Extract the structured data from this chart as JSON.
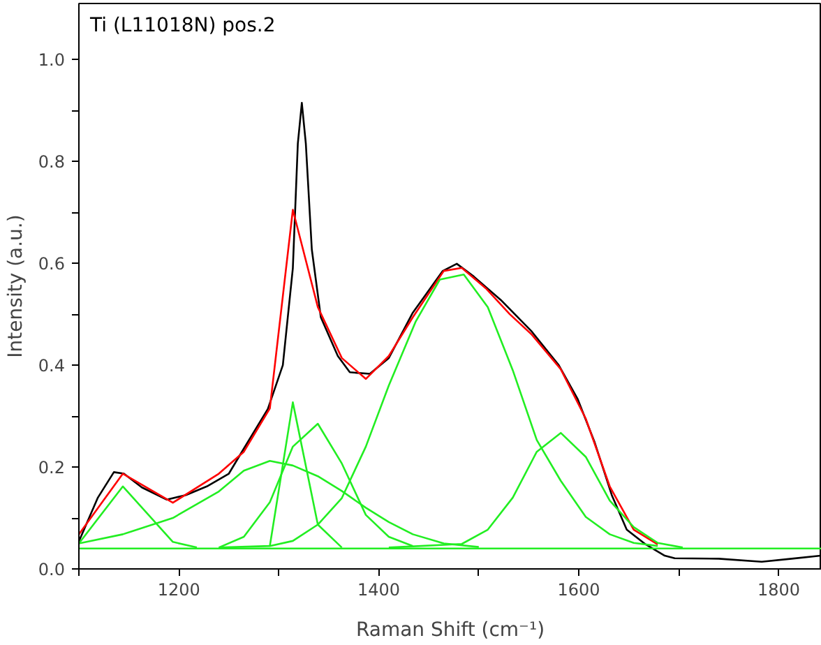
{
  "chart_data": {
    "type": "line",
    "title": "Ti (L11018N) pos.2",
    "xlabel": "Raman Shift (cm⁻¹)",
    "ylabel": "Intensity (a.u.)",
    "xlim": [
      1100,
      1843
    ],
    "ylim": [
      0,
      1.11
    ],
    "xticks": [
      {
        "value": 1100,
        "label": null
      },
      1200,
      {
        "value": 1300,
        "label": null
      },
      1400,
      {
        "value": 1500,
        "label": null
      },
      1600,
      {
        "value": 1700,
        "label": null
      },
      1800
    ],
    "yticks": [
      {
        "value": 0,
        "label": "0.0"
      },
      {
        "value": 0.1,
        "label": null
      },
      0.2,
      {
        "value": 0.3,
        "label": null
      },
      0.4,
      {
        "value": 0.5,
        "label": null
      },
      0.6,
      {
        "value": 0.7,
        "label": null
      },
      0.8,
      {
        "value": 0.9,
        "label": null
      },
      {
        "value": 1.0,
        "label": "1.0"
      }
    ],
    "grid": false,
    "line_style": "solid",
    "marker": "none",
    "series": [
      {
        "color": "#000000",
        "x": [
          1100,
          1119,
          1135,
          1145,
          1163,
          1188,
          1207,
          1228,
          1250,
          1264,
          1289,
          1304,
          1314,
          1319,
          1323,
          1327,
          1333,
          1342,
          1359,
          1371,
          1391,
          1410,
          1434,
          1464,
          1478,
          1495,
          1522,
          1553,
          1580,
          1599,
          1616,
          1633,
          1648,
          1667,
          1686,
          1696,
          1740,
          1783,
          1813,
          1842
        ],
        "values": [
          0.054,
          0.14,
          0.19,
          0.187,
          0.16,
          0.136,
          0.145,
          0.162,
          0.187,
          0.233,
          0.314,
          0.4,
          0.59,
          0.835,
          0.915,
          0.835,
          0.627,
          0.494,
          0.418,
          0.386,
          0.383,
          0.414,
          0.503,
          0.585,
          0.599,
          0.574,
          0.528,
          0.466,
          0.4,
          0.333,
          0.248,
          0.145,
          0.077,
          0.048,
          0.026,
          0.021,
          0.02,
          0.014,
          0.02,
          0.026
        ]
      },
      {
        "color": "#ff0000",
        "x": [
          1100,
          1144,
          1194,
          1240,
          1265,
          1291,
          1314,
          1339,
          1363,
          1387,
          1410,
          1434,
          1465,
          1483,
          1507,
          1531,
          1553,
          1582,
          1607,
          1631,
          1655,
          1679
        ],
        "values": [
          0.068,
          0.187,
          0.13,
          0.187,
          0.23,
          0.315,
          0.705,
          0.514,
          0.414,
          0.373,
          0.418,
          0.494,
          0.585,
          0.591,
          0.551,
          0.5,
          0.46,
          0.392,
          0.295,
          0.162,
          0.077,
          0.048
        ]
      },
      {
        "color": "#22ee22",
        "x": [
          1100,
          1144,
          1194,
          1218
        ],
        "values": [
          0.05,
          0.162,
          0.053,
          0.042
        ]
      },
      {
        "color": "#22ee22",
        "x": [
          1100,
          1144,
          1194,
          1240,
          1265,
          1291,
          1314,
          1339,
          1363,
          1387,
          1410,
          1434,
          1465,
          1500
        ],
        "values": [
          0.05,
          0.068,
          0.1,
          0.152,
          0.193,
          0.212,
          0.203,
          0.182,
          0.153,
          0.12,
          0.092,
          0.068,
          0.05,
          0.043
        ]
      },
      {
        "color": "#22ee22",
        "x": [
          1240,
          1291,
          1314,
          1339,
          1363
        ],
        "values": [
          0.042,
          0.045,
          0.327,
          0.087,
          0.042
        ]
      },
      {
        "color": "#22ee22",
        "x": [
          1240,
          1265,
          1291,
          1314,
          1339,
          1363,
          1387,
          1410,
          1434
        ],
        "values": [
          0.042,
          0.063,
          0.131,
          0.24,
          0.285,
          0.207,
          0.106,
          0.063,
          0.045
        ]
      },
      {
        "color": "#22ee22",
        "x": [
          1291,
          1314,
          1339,
          1363,
          1387,
          1410,
          1437,
          1461,
          1485,
          1509,
          1534,
          1558,
          1582,
          1607,
          1631,
          1655,
          1679
        ],
        "values": [
          0.045,
          0.055,
          0.087,
          0.139,
          0.24,
          0.36,
          0.486,
          0.568,
          0.578,
          0.514,
          0.39,
          0.253,
          0.173,
          0.102,
          0.068,
          0.051,
          0.045
        ]
      },
      {
        "color": "#22ee22",
        "x": [
          1410,
          1483,
          1509,
          1534,
          1558,
          1582,
          1607,
          1631,
          1655,
          1679,
          1704
        ],
        "values": [
          0.042,
          0.049,
          0.077,
          0.14,
          0.23,
          0.267,
          0.22,
          0.134,
          0.082,
          0.051,
          0.042
        ]
      },
      {
        "color": "#22ee22",
        "x": [
          1100,
          1843
        ],
        "values": [
          0.04,
          0.04
        ]
      }
    ]
  }
}
